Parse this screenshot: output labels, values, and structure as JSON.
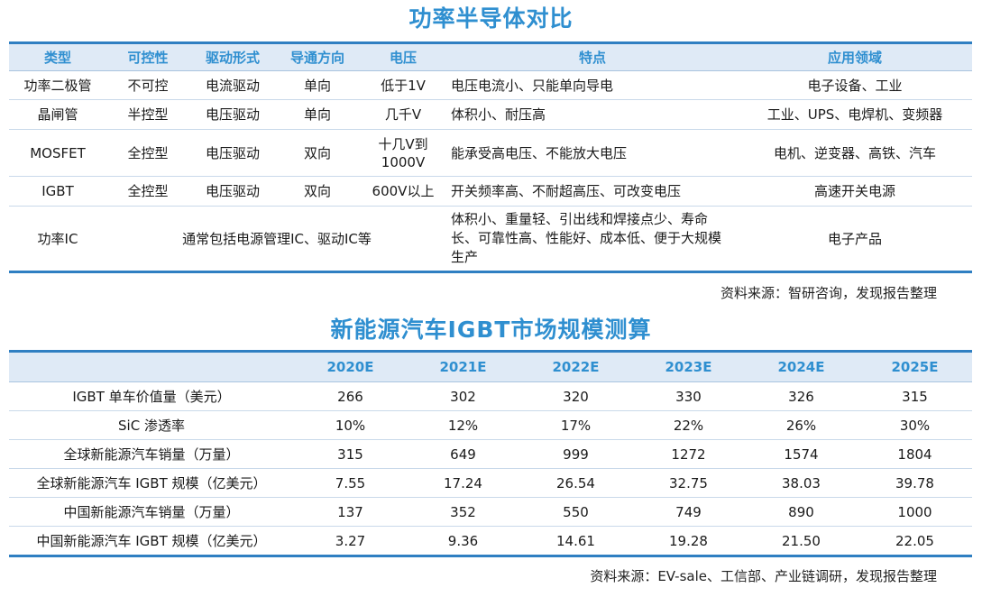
{
  "table1": {
    "title": "功率半导体对比",
    "headers": [
      "类型",
      "可控性",
      "驱动形式",
      "导通方向",
      "电压",
      "特点",
      "应用领域"
    ],
    "rows": [
      {
        "type": "功率二极管",
        "control": "不可控",
        "drive": "电流驱动",
        "direction": "单向",
        "voltage": "低于1V",
        "features": "电压电流小、只能单向导电",
        "application": "电子设备、工业"
      },
      {
        "type": "晶闸管",
        "control": "半控型",
        "drive": "电压驱动",
        "direction": "单向",
        "voltage": "几千V",
        "features": "体积小、耐压高",
        "application": "工业、UPS、电焊机、变频器"
      },
      {
        "type": "MOSFET",
        "control": "全控型",
        "drive": "电压驱动",
        "direction": "双向",
        "voltage": "十几V到1000V",
        "features": "能承受高电压、不能放大电压",
        "application": "电机、逆变器、高铁、汽车"
      },
      {
        "type": "IGBT",
        "control": "全控型",
        "drive": "电压驱动",
        "direction": "双向",
        "voltage": "600V以上",
        "features": "开关频率高、不耐超高压、可改变电压",
        "application": "高速开关电源"
      }
    ],
    "ic_row": {
      "type": "功率IC",
      "merged": "通常包括电源管理IC、驱动IC等",
      "features": "体积小、重量轻、引出线和焊接点少、寿命长、可靠性高、性能好、成本低、便于大规模生产",
      "application": "电子产品"
    },
    "source": "资料来源：智研咨询，发现报告整理"
  },
  "table2": {
    "title": "新能源汽车IGBT市场规模测算",
    "headers": [
      "",
      "2020E",
      "2021E",
      "2022E",
      "2023E",
      "2024E",
      "2025E"
    ],
    "rows": [
      {
        "label": "IGBT 单车价值量（美元）",
        "values": [
          "266",
          "302",
          "320",
          "330",
          "326",
          "315"
        ]
      },
      {
        "label": "SiC 渗透率",
        "values": [
          "10%",
          "12%",
          "17%",
          "22%",
          "26%",
          "30%"
        ]
      },
      {
        "label": "全球新能源汽车销量（万量）",
        "values": [
          "315",
          "649",
          "999",
          "1272",
          "1574",
          "1804"
        ]
      },
      {
        "label": "全球新能源汽车 IGBT 规模（亿美元）",
        "values": [
          "7.55",
          "17.24",
          "26.54",
          "32.75",
          "38.03",
          "39.78"
        ]
      },
      {
        "label": "中国新能源汽车销量（万量）",
        "values": [
          "137",
          "352",
          "550",
          "749",
          "890",
          "1000"
        ]
      },
      {
        "label": "中国新能源汽车 IGBT 规模（亿美元）",
        "values": [
          "3.27",
          "9.36",
          "14.61",
          "19.28",
          "21.50",
          "22.05"
        ]
      }
    ],
    "source": "资料来源：EV-sale、工信部、产业链调研，发现报告整理"
  }
}
